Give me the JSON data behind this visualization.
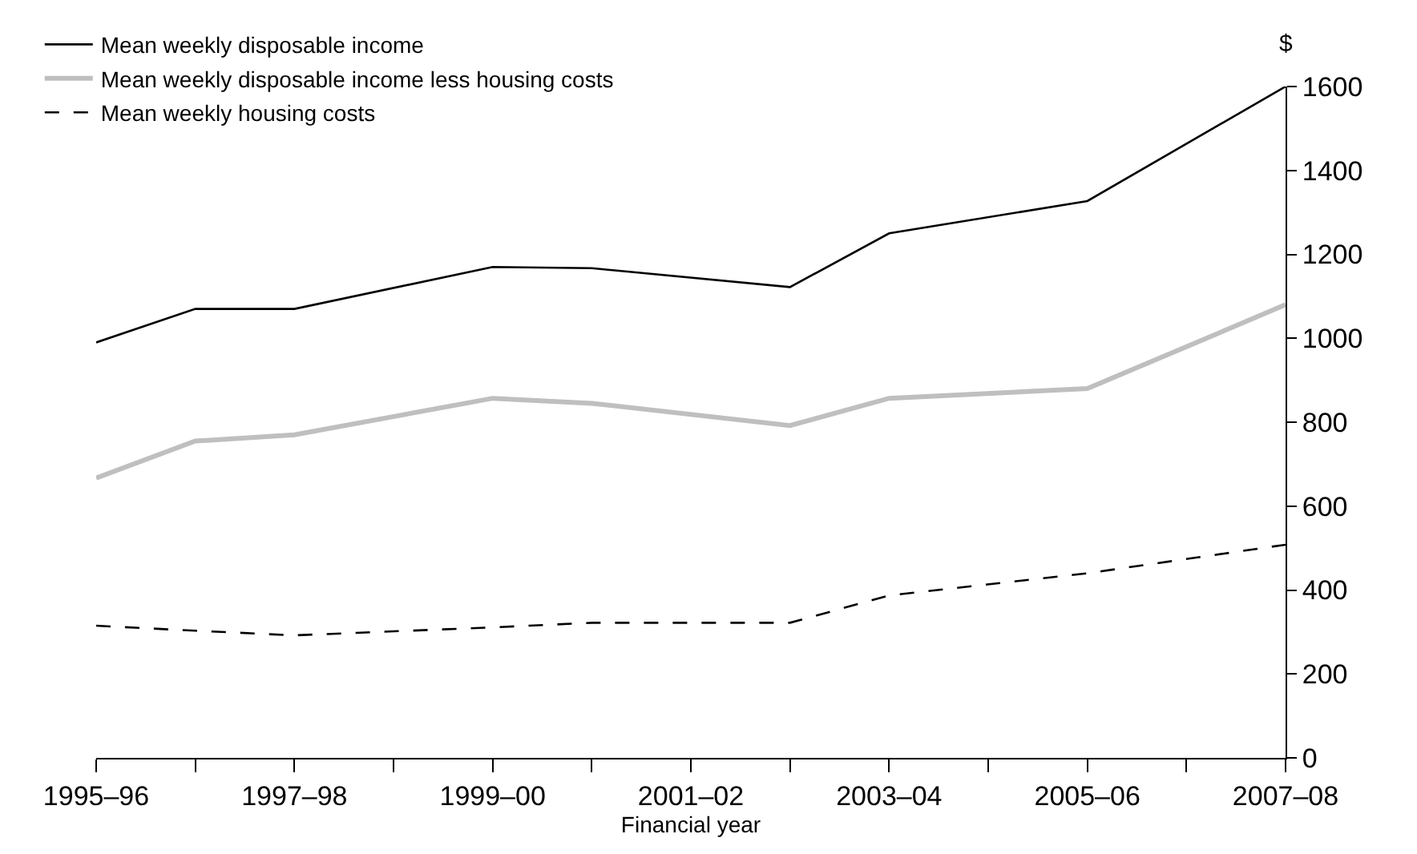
{
  "chart_data": {
    "type": "line",
    "xlabel": "Financial year",
    "ylabel": "$",
    "categories": [
      "1995–96",
      null,
      "1997–98",
      null,
      "1999–00",
      null,
      "2001–02",
      null,
      "2003–04",
      null,
      "2005–06",
      null,
      "2007–08"
    ],
    "series": [
      {
        "name": "Mean weekly disposable income",
        "color": "#000000",
        "line_style": "solid",
        "values": [
          990,
          1070,
          1070,
          null,
          1170,
          1167,
          null,
          1122,
          1250,
          null,
          1327,
          null,
          1600
        ]
      },
      {
        "name": "Mean weekly disposable income less housing costs",
        "color": "#bfbfbf",
        "line_style": "solid",
        "values": [
          667,
          755,
          770,
          null,
          857,
          845,
          null,
          792,
          857,
          null,
          880,
          null,
          1080
        ]
      },
      {
        "name": "Mean weekly housing costs",
        "color": "#000000",
        "line_style": "dashed",
        "values": [
          315,
          303,
          292,
          null,
          311,
          322,
          null,
          322,
          387,
          null,
          440,
          null,
          508
        ]
      }
    ],
    "ylim": [
      0,
      1600
    ],
    "yticks": [
      0,
      200,
      400,
      600,
      800,
      1000,
      1200,
      1400,
      1600
    ],
    "legend": "top left",
    "marker": "none"
  }
}
